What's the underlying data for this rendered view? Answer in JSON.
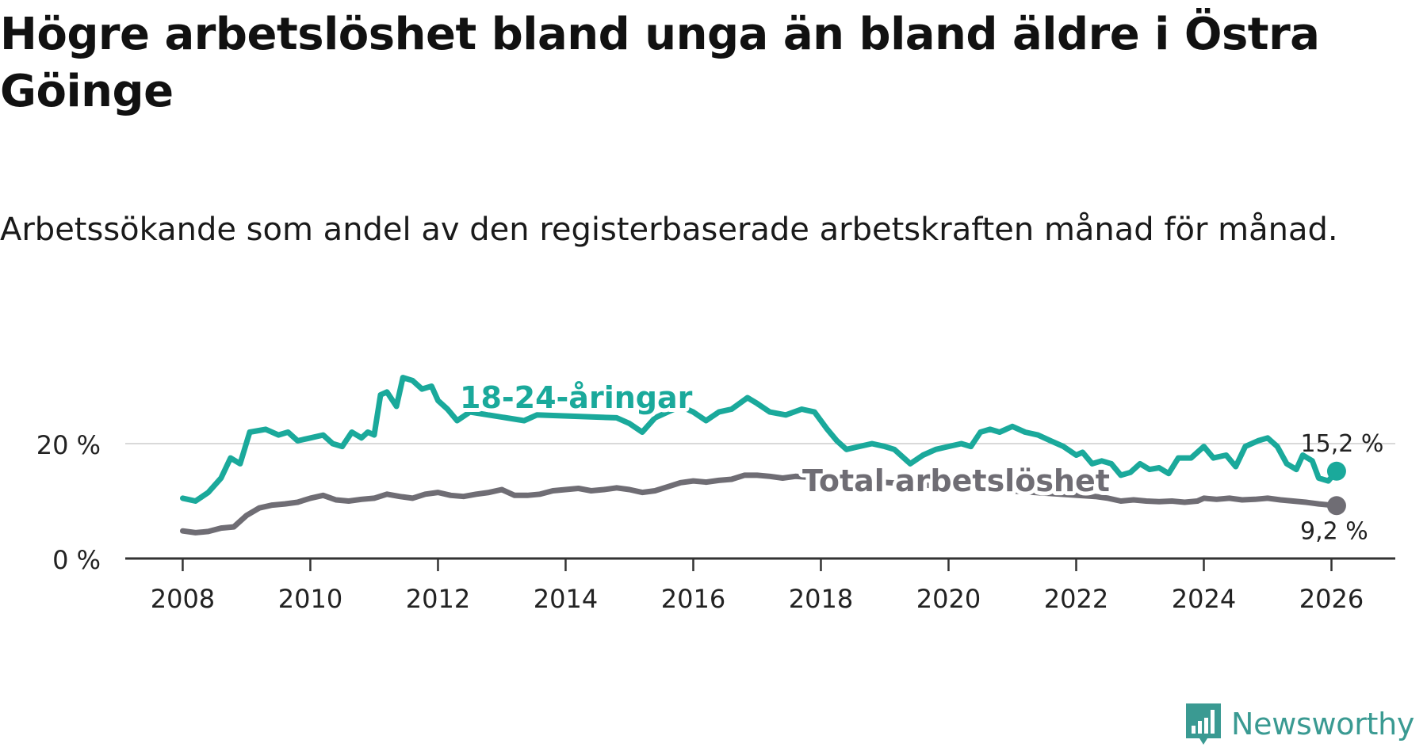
{
  "title": "Högre arbetslöshet bland unga än bland äldre i Östra Göinge",
  "subtitle": "Arbetssökande som andel av den registerbaserade arbetskraften månad för månad.",
  "brand": "Newsworthy",
  "colors": {
    "youth": "#1aa99b",
    "total": "#6f6d74",
    "grid": "#d9d9d9",
    "axis": "#333333",
    "brand": "#3a9a92"
  },
  "chart_data": {
    "type": "line",
    "title": "Högre arbetslöshet bland unga än bland äldre i Östra Göinge",
    "xlabel": "",
    "ylabel": "",
    "xlim": [
      2007.1,
      2027.0
    ],
    "ylim": [
      0,
      30
    ],
    "x_ticks": [
      2008,
      2010,
      2012,
      2014,
      2016,
      2018,
      2020,
      2022,
      2024,
      2026
    ],
    "y_ticks": [
      {
        "value": 0,
        "label": "0 %"
      },
      {
        "value": 20,
        "label": "20 %"
      }
    ],
    "gridlines": [
      20
    ],
    "series": [
      {
        "name": "18-24-åringar",
        "label": "18-24-åringar",
        "color": "#1aa99b",
        "end_label": "15,2 %",
        "end_value": 15.2,
        "points": [
          [
            2008.0,
            10.5
          ],
          [
            2008.2,
            10.0
          ],
          [
            2008.4,
            11.5
          ],
          [
            2008.6,
            14.0
          ],
          [
            2008.75,
            17.5
          ],
          [
            2008.9,
            16.5
          ],
          [
            2009.05,
            22.0
          ],
          [
            2009.3,
            22.5
          ],
          [
            2009.5,
            21.5
          ],
          [
            2009.65,
            22.0
          ],
          [
            2009.8,
            20.5
          ],
          [
            2010.0,
            21.0
          ],
          [
            2010.2,
            21.5
          ],
          [
            2010.35,
            20.0
          ],
          [
            2010.5,
            19.5
          ],
          [
            2010.65,
            22.0
          ],
          [
            2010.8,
            21.0
          ],
          [
            2010.9,
            22.0
          ],
          [
            2011.0,
            21.5
          ],
          [
            2011.1,
            28.5
          ],
          [
            2011.2,
            29.0
          ],
          [
            2011.35,
            26.5
          ],
          [
            2011.45,
            31.5
          ],
          [
            2011.6,
            31.0
          ],
          [
            2011.75,
            29.5
          ],
          [
            2011.9,
            30.0
          ],
          [
            2012.0,
            27.5
          ],
          [
            2012.15,
            26.0
          ],
          [
            2012.3,
            24.0
          ],
          [
            2012.5,
            25.5
          ],
          [
            2013.35,
            24.0
          ],
          [
            2013.55,
            25.0
          ],
          [
            2014.8,
            24.5
          ],
          [
            2015.0,
            23.5
          ],
          [
            2015.2,
            22.0
          ],
          [
            2015.4,
            24.5
          ],
          [
            2015.6,
            25.5
          ],
          [
            2015.8,
            26.5
          ],
          [
            2016.0,
            25.5
          ],
          [
            2016.2,
            24.0
          ],
          [
            2016.4,
            25.5
          ],
          [
            2016.6,
            26.0
          ],
          [
            2016.85,
            28.0
          ],
          [
            2017.0,
            27.0
          ],
          [
            2017.2,
            25.5
          ],
          [
            2017.45,
            25.0
          ],
          [
            2017.7,
            26.0
          ],
          [
            2017.9,
            25.5
          ],
          [
            2018.1,
            22.5
          ],
          [
            2018.25,
            20.5
          ],
          [
            2018.4,
            19.0
          ],
          [
            2018.6,
            19.5
          ],
          [
            2018.8,
            20.0
          ],
          [
            2019.0,
            19.5
          ],
          [
            2019.15,
            19.0
          ],
          [
            2019.3,
            17.5
          ],
          [
            2019.4,
            16.5
          ],
          [
            2019.6,
            18.0
          ],
          [
            2019.8,
            19.0
          ],
          [
            2020.0,
            19.5
          ],
          [
            2020.2,
            20.0
          ],
          [
            2020.35,
            19.5
          ],
          [
            2020.5,
            22.0
          ],
          [
            2020.65,
            22.5
          ],
          [
            2020.8,
            22.0
          ],
          [
            2021.0,
            23.0
          ],
          [
            2021.2,
            22.0
          ],
          [
            2021.4,
            21.5
          ],
          [
            2021.6,
            20.5
          ],
          [
            2021.8,
            19.5
          ],
          [
            2022.0,
            18.0
          ],
          [
            2022.1,
            18.5
          ],
          [
            2022.25,
            16.5
          ],
          [
            2022.4,
            17.0
          ],
          [
            2022.55,
            16.5
          ],
          [
            2022.7,
            14.5
          ],
          [
            2022.85,
            15.0
          ],
          [
            2023.0,
            16.5
          ],
          [
            2023.15,
            15.5
          ],
          [
            2023.3,
            15.8
          ],
          [
            2023.45,
            14.8
          ],
          [
            2023.6,
            17.5
          ],
          [
            2023.8,
            17.5
          ],
          [
            2024.0,
            19.5
          ],
          [
            2024.15,
            17.5
          ],
          [
            2024.35,
            18.0
          ],
          [
            2024.5,
            16.0
          ],
          [
            2024.65,
            19.5
          ],
          [
            2024.85,
            20.5
          ],
          [
            2025.0,
            21.0
          ],
          [
            2025.15,
            19.5
          ],
          [
            2025.3,
            16.5
          ],
          [
            2025.45,
            15.5
          ],
          [
            2025.55,
            18.0
          ],
          [
            2025.7,
            17.0
          ],
          [
            2025.8,
            14.0
          ],
          [
            2025.95,
            13.5
          ],
          [
            2026.08,
            15.2
          ]
        ]
      },
      {
        "name": "Total arbetslöshet",
        "label": "Total arbetslöshet",
        "color": "#6f6d74",
        "end_label": "9,2 %",
        "end_value": 9.2,
        "points": [
          [
            2008.0,
            4.8
          ],
          [
            2008.2,
            4.5
          ],
          [
            2008.4,
            4.7
          ],
          [
            2008.6,
            5.3
          ],
          [
            2008.8,
            5.5
          ],
          [
            2009.0,
            7.5
          ],
          [
            2009.2,
            8.8
          ],
          [
            2009.4,
            9.3
          ],
          [
            2009.6,
            9.5
          ],
          [
            2009.8,
            9.8
          ],
          [
            2010.0,
            10.5
          ],
          [
            2010.2,
            11.0
          ],
          [
            2010.4,
            10.2
          ],
          [
            2010.6,
            10.0
          ],
          [
            2010.8,
            10.3
          ],
          [
            2011.0,
            10.5
          ],
          [
            2011.2,
            11.2
          ],
          [
            2011.4,
            10.8
          ],
          [
            2011.6,
            10.5
          ],
          [
            2011.8,
            11.2
          ],
          [
            2012.0,
            11.5
          ],
          [
            2012.2,
            11.0
          ],
          [
            2012.4,
            10.8
          ],
          [
            2012.6,
            11.2
          ],
          [
            2012.8,
            11.5
          ],
          [
            2013.0,
            12.0
          ],
          [
            2013.2,
            11.0
          ],
          [
            2013.4,
            11.0
          ],
          [
            2013.6,
            11.2
          ],
          [
            2013.8,
            11.8
          ],
          [
            2014.0,
            12.0
          ],
          [
            2014.2,
            12.2
          ],
          [
            2014.4,
            11.8
          ],
          [
            2014.6,
            12.0
          ],
          [
            2014.8,
            12.3
          ],
          [
            2015.0,
            12.0
          ],
          [
            2015.2,
            11.5
          ],
          [
            2015.4,
            11.8
          ],
          [
            2015.6,
            12.5
          ],
          [
            2015.8,
            13.2
          ],
          [
            2016.0,
            13.5
          ],
          [
            2016.2,
            13.3
          ],
          [
            2016.4,
            13.6
          ],
          [
            2016.6,
            13.8
          ],
          [
            2016.8,
            14.5
          ],
          [
            2017.0,
            14.5
          ],
          [
            2017.2,
            14.3
          ],
          [
            2017.4,
            14.0
          ],
          [
            2017.6,
            14.3
          ],
          [
            2022.3,
            10.8
          ],
          [
            2022.5,
            10.5
          ],
          [
            2022.7,
            10.0
          ],
          [
            2022.9,
            10.2
          ],
          [
            2023.1,
            10.0
          ],
          [
            2023.3,
            9.9
          ],
          [
            2023.5,
            10.0
          ],
          [
            2023.7,
            9.8
          ],
          [
            2023.9,
            10.0
          ],
          [
            2024.0,
            10.5
          ],
          [
            2024.2,
            10.3
          ],
          [
            2024.4,
            10.5
          ],
          [
            2024.6,
            10.2
          ],
          [
            2024.8,
            10.3
          ],
          [
            2025.0,
            10.5
          ],
          [
            2025.2,
            10.2
          ],
          [
            2025.4,
            10.0
          ],
          [
            2025.6,
            9.8
          ],
          [
            2025.8,
            9.5
          ],
          [
            2026.08,
            9.2
          ]
        ]
      }
    ]
  }
}
